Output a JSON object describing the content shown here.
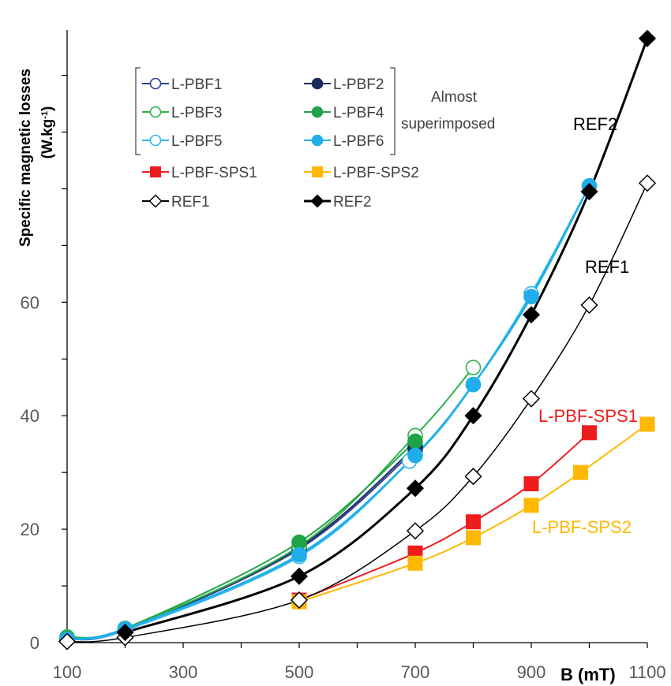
{
  "chart_data": {
    "type": "line",
    "xlabel": "B (mT)",
    "ylabel_line1": "Specific magnetic losses",
    "ylabel_line2_main": "(W.kg",
    "ylabel_line2_sup": "-1",
    "ylabel_line2_end": ")",
    "xlim": [
      100,
      1100
    ],
    "ylim": [
      0,
      108
    ],
    "x_ticks": [
      "100",
      "300",
      "500",
      "700",
      "900",
      "1100"
    ],
    "y_ticks": [
      "0",
      "20",
      "40",
      "60"
    ],
    "grid": false,
    "legend_bracket_note_line1": "Almost",
    "legend_bracket_note_line2": "superimposed",
    "series": [
      {
        "name": "L-PBF1",
        "color": "#2F3F8F",
        "marker": "circle-open",
        "lw": 2,
        "points": [
          [
            100,
            0.6
          ],
          [
            200,
            2.2
          ],
          [
            500,
            16.5
          ],
          [
            700,
            34
          ]
        ]
      },
      {
        "name": "L-PBF2",
        "color": "#1B2A5E",
        "marker": "circle-filled",
        "lw": 2,
        "points": [
          [
            100,
            0.6
          ],
          [
            200,
            2.3
          ],
          [
            500,
            16.8
          ],
          [
            700,
            34.5
          ]
        ]
      },
      {
        "name": "L-PBF3",
        "color": "#2DB24A",
        "marker": "circle-open",
        "lw": 2,
        "points": [
          [
            100,
            1
          ],
          [
            200,
            2.5
          ],
          [
            500,
            17
          ],
          [
            700,
            36.5
          ],
          [
            800,
            48.5
          ]
        ]
      },
      {
        "name": "L-PBF4",
        "color": "#1FA347",
        "marker": "circle-filled",
        "lw": 2,
        "points": [
          [
            100,
            0.8
          ],
          [
            200,
            2.5
          ],
          [
            500,
            17.7
          ],
          [
            700,
            35.5
          ]
        ]
      },
      {
        "name": "L-PBF5",
        "color": "#31B7EA",
        "marker": "circle-open",
        "lw": 2.5,
        "points": [
          [
            100,
            0.6
          ],
          [
            200,
            2.2
          ],
          [
            500,
            15.2
          ],
          [
            690,
            32
          ],
          [
            800,
            45.5
          ],
          [
            900,
            61.5
          ],
          [
            1000,
            80.5
          ]
        ]
      },
      {
        "name": "L-PBF6",
        "color": "#1FAEEA",
        "marker": "circle-filled",
        "lw": 2.5,
        "points": [
          [
            100,
            0.6
          ],
          [
            200,
            2.4
          ],
          [
            500,
            15.5
          ],
          [
            700,
            33
          ],
          [
            800,
            45.5
          ],
          [
            900,
            61
          ],
          [
            1000,
            80.5
          ]
        ]
      },
      {
        "name": "L-PBF-SPS1",
        "color": "#EE1C1C",
        "marker": "square-filled",
        "lw": 2,
        "points": [
          [
            500,
            7.5
          ],
          [
            700,
            15.8
          ],
          [
            800,
            21.3
          ],
          [
            900,
            28
          ],
          [
            1000,
            37
          ]
        ]
      },
      {
        "name": "L-PBF-SPS2",
        "color": "#FFB800",
        "marker": "square-filled",
        "lw": 2,
        "points": [
          [
            500,
            7.2
          ],
          [
            700,
            14
          ],
          [
            800,
            18.5
          ],
          [
            900,
            24.2
          ],
          [
            985,
            30
          ],
          [
            1100,
            38.5
          ]
        ]
      },
      {
        "name": "REF1",
        "color": "#000000",
        "marker": "diamond-open",
        "lw": 1.5,
        "points": [
          [
            100,
            0.2
          ],
          [
            200,
            0.9
          ],
          [
            500,
            7.5
          ],
          [
            700,
            19.7
          ],
          [
            800,
            29.3
          ],
          [
            900,
            43
          ],
          [
            1000,
            59.5
          ],
          [
            1100,
            81
          ]
        ]
      },
      {
        "name": "REF2",
        "color": "#000000",
        "marker": "diamond-filled",
        "lw": 3,
        "points": [
          [
            200,
            1.8
          ],
          [
            500,
            11.7
          ],
          [
            700,
            27.2
          ],
          [
            800,
            40
          ],
          [
            900,
            57.8
          ],
          [
            1000,
            79.5
          ],
          [
            1100,
            106.5
          ]
        ]
      }
    ],
    "annotations": [
      {
        "text": "REF2",
        "color": "#000000"
      },
      {
        "text": "REF1",
        "color": "#000000"
      },
      {
        "text": "L-PBF-SPS1",
        "color": "#EE1C1C"
      },
      {
        "text": "L-PBF-SPS2",
        "color": "#FFB800"
      }
    ]
  }
}
